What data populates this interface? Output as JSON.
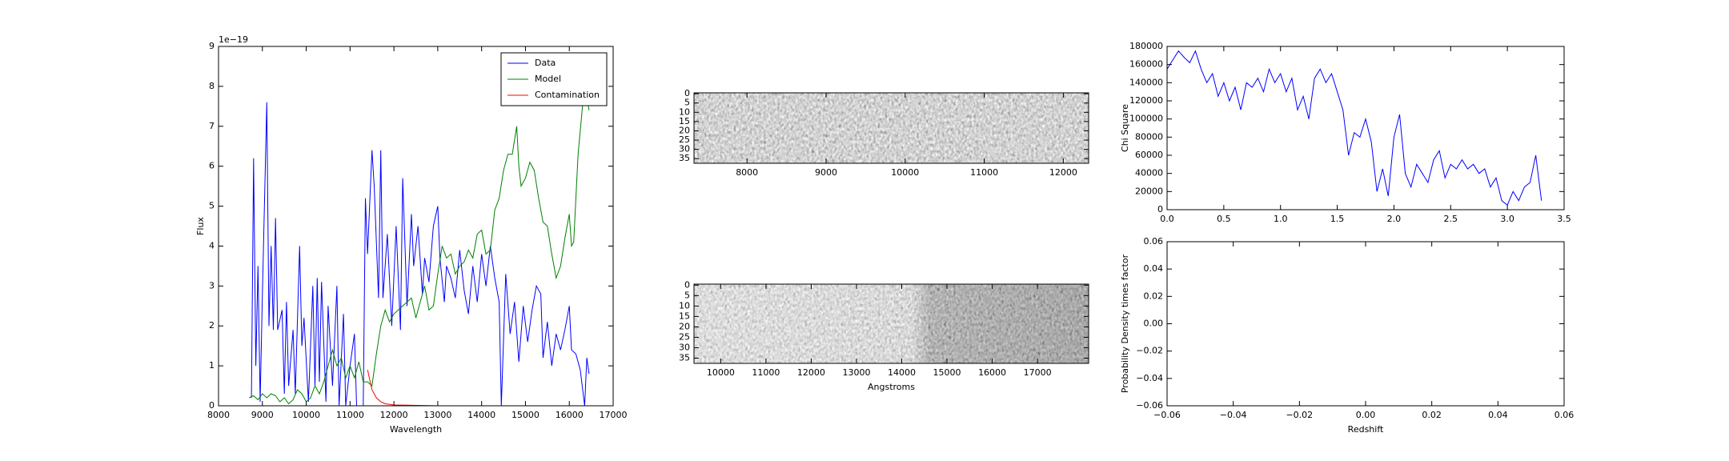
{
  "chart_data": [
    {
      "type": "line",
      "xlabel": "Wavelength",
      "ylabel": "Flux",
      "offset_label": "1e−19",
      "xlim": [
        8000,
        17000
      ],
      "xticks": [
        8000,
        9000,
        10000,
        11000,
        12000,
        13000,
        14000,
        15000,
        16000,
        17000
      ],
      "ylim": [
        0,
        9
      ],
      "yticks": [
        0,
        1,
        2,
        3,
        4,
        5,
        6,
        7,
        8,
        9
      ],
      "legend": "upper right",
      "series": [
        {
          "name": "Data",
          "color": "#0000ff",
          "x": [
            8750,
            8800,
            8850,
            8900,
            8950,
            9000,
            9100,
            9150,
            9200,
            9250,
            9300,
            9350,
            9450,
            9500,
            9550,
            9600,
            9700,
            9750,
            9850,
            9900,
            9950,
            10050,
            10150,
            10200,
            10250,
            10300,
            10350,
            10450,
            10500,
            10600,
            10700,
            10750,
            10850,
            10900,
            11000,
            11100,
            11150,
            11300,
            11350,
            11400,
            11500,
            11550,
            11650,
            11700,
            11750,
            11850,
            11950,
            12050,
            12150,
            12200,
            12300,
            12400,
            12450,
            12550,
            12650,
            12700,
            12800,
            12900,
            13000,
            13050,
            13150,
            13200,
            13300,
            13400,
            13500,
            13600,
            13700,
            13800,
            13900,
            14000,
            14100,
            14200,
            14300,
            14400,
            14450,
            14550,
            14650,
            14750,
            14850,
            14950,
            15050,
            15150,
            15250,
            15350,
            15400,
            15500,
            15600,
            15700,
            15800,
            15900,
            16000,
            16050,
            16150,
            16250,
            16350,
            16400,
            16450
          ],
          "values": [
            0.2,
            6.2,
            1.0,
            3.5,
            0.1,
            2.8,
            7.6,
            2.0,
            4.0,
            1.9,
            4.7,
            1.9,
            2.4,
            0.3,
            2.6,
            0.5,
            1.9,
            0.3,
            4.0,
            1.5,
            2.2,
            0.1,
            3.0,
            0.5,
            3.2,
            0.6,
            3.1,
            0.1,
            2.5,
            0.5,
            3.0,
            0.0,
            2.3,
            0.0,
            1.0,
            1.8,
            0.0,
            0.0,
            5.2,
            3.8,
            6.4,
            5.5,
            2.7,
            6.4,
            2.7,
            4.3,
            2.0,
            4.5,
            1.9,
            5.7,
            2.5,
            4.8,
            3.5,
            4.5,
            2.8,
            3.7,
            3.1,
            4.5,
            5.0,
            3.7,
            2.6,
            3.5,
            3.2,
            2.7,
            3.9,
            2.9,
            2.3,
            3.5,
            2.6,
            3.8,
            3.0,
            4.0,
            3.2,
            2.6,
            0.0,
            3.3,
            1.8,
            2.6,
            1.1,
            2.5,
            1.6,
            2.4,
            3.0,
            2.8,
            1.2,
            2.1,
            1.0,
            1.8,
            1.4,
            1.9,
            2.5,
            1.4,
            1.3,
            0.9,
            0.0,
            1.2,
            0.8
          ]
        },
        {
          "name": "Model",
          "color": "#008000",
          "x": [
            8700,
            8800,
            8900,
            9000,
            9100,
            9200,
            9300,
            9400,
            9500,
            9600,
            9700,
            9800,
            9900,
            10000,
            10100,
            10200,
            10300,
            10400,
            10500,
            10600,
            10700,
            10800,
            10900,
            11000,
            11100,
            11200,
            11300,
            11400,
            11500,
            11600,
            11700,
            11800,
            11900,
            12000,
            12200,
            12400,
            12500,
            12600,
            12700,
            12800,
            12900,
            13000,
            13100,
            13200,
            13300,
            13400,
            13500,
            13600,
            13700,
            13800,
            13900,
            14000,
            14100,
            14200,
            14300,
            14400,
            14500,
            14600,
            14700,
            14800,
            14850,
            14900,
            15000,
            15100,
            15200,
            15300,
            15400,
            15500,
            15600,
            15700,
            15800,
            15900,
            16000,
            16050,
            16100,
            16200,
            16300,
            16350,
            16400,
            16450
          ],
          "values": [
            0.2,
            0.25,
            0.15,
            0.3,
            0.2,
            0.3,
            0.25,
            0.1,
            0.2,
            0.05,
            0.15,
            0.4,
            0.3,
            0.1,
            0.2,
            0.5,
            0.3,
            0.6,
            1.0,
            1.4,
            1.0,
            1.2,
            0.7,
            1.0,
            0.7,
            1.1,
            0.6,
            0.6,
            0.5,
            1.3,
            2.0,
            2.4,
            2.1,
            2.3,
            2.5,
            2.7,
            2.2,
            2.6,
            3.0,
            2.4,
            2.5,
            3.3,
            4.0,
            3.7,
            3.8,
            3.3,
            3.5,
            3.6,
            3.9,
            3.7,
            4.3,
            4.4,
            3.8,
            3.9,
            4.9,
            5.2,
            5.9,
            6.3,
            6.3,
            7.0,
            6.0,
            5.5,
            5.7,
            6.1,
            5.9,
            5.2,
            4.6,
            4.5,
            3.8,
            3.2,
            3.5,
            4.2,
            4.8,
            4.0,
            4.1,
            6.3,
            7.5,
            8.4,
            7.7,
            7.4
          ]
        },
        {
          "name": "Contamination",
          "color": "#ff0000",
          "x": [
            11400,
            11500,
            11600,
            11700,
            11800,
            12000,
            13000,
            14000,
            15000,
            16000,
            16450
          ],
          "values": [
            0.9,
            0.4,
            0.2,
            0.1,
            0.05,
            0.02,
            0,
            0,
            0,
            0,
            0
          ]
        }
      ]
    },
    {
      "type": "image",
      "xlim": [
        7330,
        12320
      ],
      "xticks": [
        8000,
        9000,
        10000,
        11000,
        12000
      ],
      "ylim": [
        -0.5,
        37.5
      ],
      "yticks": [
        0,
        5,
        10,
        15,
        20,
        25,
        30,
        35
      ],
      "y_inverted": true
    },
    {
      "type": "image",
      "xlabel": "Angstroms",
      "xlim": [
        9410,
        18130
      ],
      "xticks": [
        10000,
        11000,
        12000,
        13000,
        14000,
        15000,
        16000,
        17000
      ],
      "ylim": [
        -0.5,
        37.5
      ],
      "yticks": [
        0,
        5,
        10,
        15,
        20,
        25,
        30,
        35
      ],
      "y_inverted": true
    },
    {
      "type": "line",
      "ylabel": "Chi Square",
      "xlim": [
        0,
        3.5
      ],
      "xticks": [
        {
          "value": 0,
          "label": "0.0"
        },
        0.5,
        {
          "value": 1,
          "label": "1.0"
        },
        1.5,
        {
          "value": 2,
          "label": "2.0"
        },
        2.5,
        {
          "value": 3,
          "label": "3.0"
        },
        3.5
      ],
      "ylim": [
        0,
        180000
      ],
      "yticks": [
        0,
        20000,
        40000,
        60000,
        80000,
        100000,
        120000,
        140000,
        160000,
        180000
      ],
      "series": [
        {
          "color": "#0000ff",
          "x": [
            0.0,
            0.05,
            0.1,
            0.15,
            0.2,
            0.25,
            0.3,
            0.35,
            0.4,
            0.45,
            0.5,
            0.55,
            0.6,
            0.65,
            0.7,
            0.75,
            0.8,
            0.85,
            0.9,
            0.95,
            1.0,
            1.05,
            1.1,
            1.15,
            1.2,
            1.25,
            1.3,
            1.35,
            1.4,
            1.45,
            1.5,
            1.55,
            1.6,
            1.65,
            1.7,
            1.75,
            1.8,
            1.85,
            1.9,
            1.95,
            2.0,
            2.05,
            2.1,
            2.15,
            2.2,
            2.25,
            2.3,
            2.35,
            2.4,
            2.45,
            2.5,
            2.55,
            2.6,
            2.65,
            2.7,
            2.75,
            2.8,
            2.85,
            2.9,
            2.95,
            3.0,
            3.05,
            3.1,
            3.15,
            3.2,
            3.25,
            3.3
          ],
          "values": [
            155000,
            165000,
            175000,
            168000,
            162000,
            175000,
            155000,
            140000,
            150000,
            125000,
            140000,
            120000,
            135000,
            110000,
            140000,
            135000,
            145000,
            130000,
            155000,
            140000,
            150000,
            130000,
            145000,
            110000,
            125000,
            100000,
            145000,
            155000,
            140000,
            150000,
            130000,
            110000,
            60000,
            85000,
            80000,
            100000,
            75000,
            20000,
            45000,
            15000,
            80000,
            105000,
            40000,
            25000,
            50000,
            40000,
            30000,
            55000,
            65000,
            35000,
            50000,
            45000,
            55000,
            45000,
            50000,
            40000,
            45000,
            25000,
            35000,
            10000,
            5000,
            20000,
            10000,
            25000,
            30000,
            60000,
            10000
          ]
        }
      ]
    },
    {
      "type": "line",
      "xlabel": "Redshift",
      "ylabel": "Probability Density times factor",
      "xlim": [
        -0.06,
        0.06
      ],
      "xticks": [
        {
          "value": -0.06,
          "label": "−0.06"
        },
        {
          "value": -0.04,
          "label": "−0.04"
        },
        {
          "value": -0.02,
          "label": "−0.02"
        },
        {
          "value": 0,
          "label": "0.00"
        },
        0.02,
        0.04,
        0.06
      ],
      "ylim": [
        -0.06,
        0.06
      ],
      "yticks": [
        {
          "value": -0.06,
          "label": "−0.06"
        },
        {
          "value": -0.04,
          "label": "−0.04"
        },
        {
          "value": -0.02,
          "label": "−0.02"
        },
        {
          "value": 0,
          "label": "0.00"
        },
        0.02,
        0.04,
        0.06
      ],
      "series": []
    }
  ]
}
